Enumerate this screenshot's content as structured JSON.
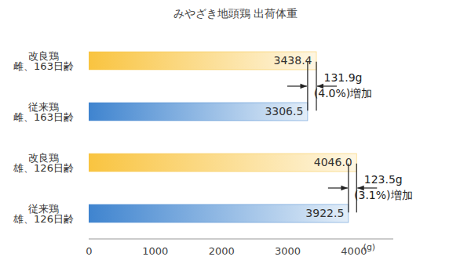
{
  "chart_data": {
    "type": "bar",
    "title": "みやざき地頭鶏 出荷体重",
    "orientation": "horizontal",
    "categories": [
      "改良鶏\n雌、163日齢",
      "従来鶏\n雌、163日齢",
      "改良鶏\n雄、126日齢",
      "従来鶏\n雄、126日齢"
    ],
    "values": [
      3438.4,
      3306.5,
      4046.0,
      3922.5
    ],
    "value_labels": [
      "3438.4",
      "3306.5",
      "4046.0",
      "3922.5"
    ],
    "data_labels": true,
    "colors": [
      "#f9c440",
      "#3f84cf",
      "#f9c440",
      "#3f84cf"
    ],
    "xlim": [
      0,
      4600
    ],
    "xticks": [
      0,
      1000,
      2000,
      3000,
      4000
    ],
    "xlabel": "(g)",
    "grid": false,
    "annotations": [
      {
        "text": "131.9g\n(4.0%)増加",
        "categories": [
          "改良鶏\n雌、163日齢",
          "従来鶏\n雌、163日齢"
        ]
      },
      {
        "text": "123.5g\n(3.1%)増加",
        "categories": [
          "改良鶏\n雄、126日齢",
          "従来鶏\n雄、126日齢"
        ]
      }
    ]
  }
}
